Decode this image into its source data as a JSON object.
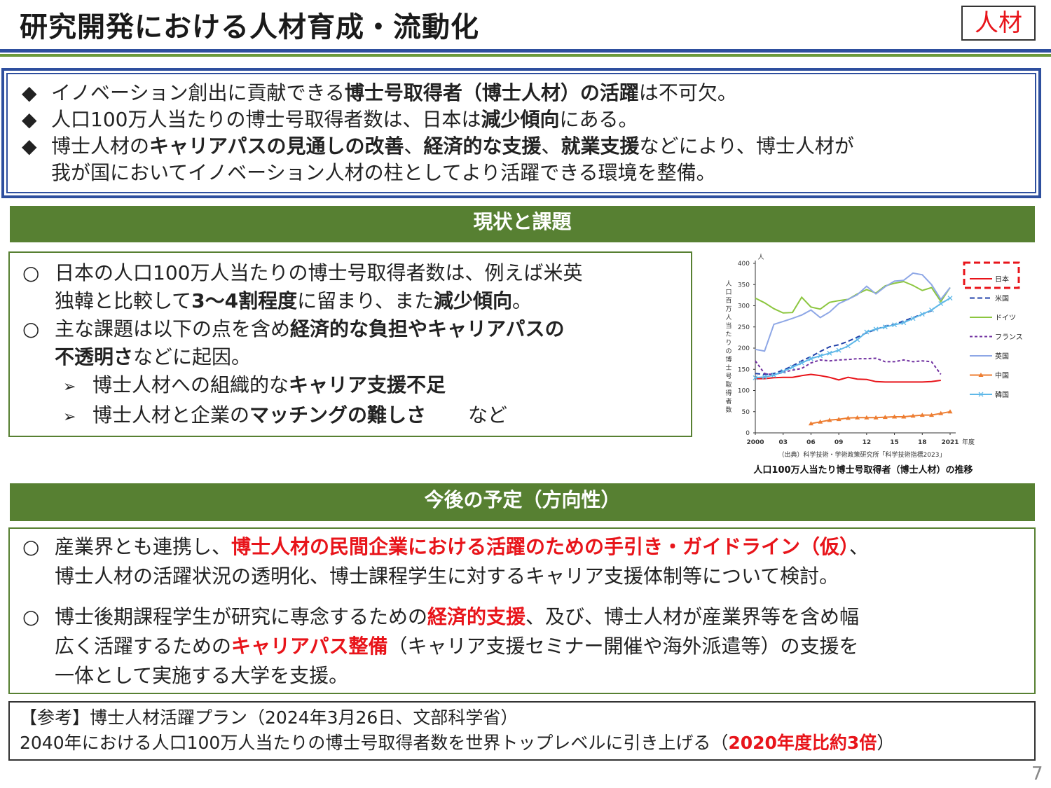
{
  "header": {
    "title": "研究開発における人材育成・流動化",
    "tag": "人材"
  },
  "summary": {
    "bullet": "◆",
    "line1": {
      "t1": "イノベーション創出に貢献できる",
      "b1": "博士号取得者（博士人材）の活躍",
      "t2": "は不可欠。"
    },
    "line2": {
      "t1": "人口100万人当たりの博士号取得者数は、日本は",
      "b1": "減少傾向",
      "t2": "にある。"
    },
    "line3": {
      "t1": "博士人材の",
      "b1": "キャリアパスの見通しの改善",
      "t2": "、",
      "b2": "経済的な支援",
      "t3": "、",
      "b3": "就業支援",
      "t4": "などにより、博士人材が"
    },
    "line4": "我が国においてイノベーション人材の柱としてより活躍できる環境を整備。"
  },
  "section1": {
    "title": "現状と課題"
  },
  "status": {
    "circle": "○",
    "arrow": "➢",
    "p1": {
      "t1": "日本の人口100万人当たりの博士号取得者数は、例えば米英",
      "t2": "独韓と比較して",
      "b1": "3～4割程度",
      "t3": "に留まり、また",
      "b2": "減少傾向",
      "t4": "。"
    },
    "p2": {
      "t1": "主な課題は以下の点を含め",
      "b1": "経済的な負担やキャリアパスの",
      "b2": "不透明さ",
      "t2": "などに起因。"
    },
    "sub1": {
      "t1": "博士人材への組織的な",
      "b1": "キャリア支援不足"
    },
    "sub2": {
      "t1": "博士人材と企業の",
      "b1": "マッチングの難しさ",
      "t2": "など"
    }
  },
  "chart": {
    "ylabel_unit": "人",
    "ylabel": "人口百万人当たりの博士号取得者数",
    "xlabel_unit": "年度",
    "source": "（出典）科学技術・学術政策研究所「科学技術指標2023」",
    "caption": "人口100万人当たり博士号取得者（博士人材）の推移",
    "highlight_color": "#e8141a"
  },
  "chart_data": {
    "type": "line",
    "ylim": [
      0,
      400
    ],
    "y_ticks": [
      0,
      50,
      100,
      150,
      200,
      250,
      300,
      350,
      400
    ],
    "xlim": [
      2000,
      2021
    ],
    "x_ticks": [
      {
        "v": 2000,
        "label": "2000"
      },
      {
        "v": 2003,
        "label": "03"
      },
      {
        "v": 2006,
        "label": "06"
      },
      {
        "v": 2009,
        "label": "09"
      },
      {
        "v": 2012,
        "label": "12"
      },
      {
        "v": 2015,
        "label": "15"
      },
      {
        "v": 2018,
        "label": "18"
      },
      {
        "v": 2021,
        "label": "2021"
      }
    ],
    "legend_position": "right",
    "series": [
      {
        "name": "日本",
        "color": "#e8141a",
        "dash": "",
        "marker": "none",
        "x": [
          2000,
          2001,
          2002,
          2003,
          2004,
          2005,
          2006,
          2007,
          2008,
          2009,
          2010,
          2011,
          2012,
          2013,
          2014,
          2015,
          2016,
          2017,
          2018,
          2019,
          2020
        ],
        "y": [
          128,
          128,
          130,
          131,
          131,
          135,
          138,
          135,
          131,
          125,
          131,
          127,
          126,
          121,
          120,
          120,
          120,
          120,
          120,
          121,
          124
        ]
      },
      {
        "name": "米国",
        "color": "#1f3fa8",
        "dash": "7,4",
        "marker": "none",
        "x": [
          2000,
          2001,
          2002,
          2003,
          2004,
          2005,
          2006,
          2007,
          2008,
          2009,
          2010,
          2011,
          2012,
          2013,
          2014,
          2015,
          2016,
          2017,
          2018,
          2019
        ],
        "y": [
          140,
          138,
          140,
          148,
          158,
          170,
          180,
          192,
          203,
          208,
          216,
          226,
          236,
          244,
          252,
          256,
          264,
          272,
          280,
          288
        ]
      },
      {
        "name": "ドイツ",
        "color": "#8cc63f",
        "dash": "",
        "marker": "none",
        "x": [
          2000,
          2001,
          2002,
          2003,
          2004,
          2005,
          2006,
          2007,
          2008,
          2009,
          2010,
          2011,
          2012,
          2013,
          2014,
          2015,
          2016,
          2017,
          2018,
          2019,
          2020,
          2021
        ],
        "y": [
          318,
          307,
          293,
          283,
          284,
          320,
          297,
          292,
          308,
          312,
          315,
          328,
          338,
          330,
          347,
          353,
          357,
          348,
          336,
          343,
          310,
          343
        ]
      },
      {
        "name": "フランス",
        "color": "#7030a0",
        "dash": "4,3",
        "marker": "none",
        "x": [
          2000,
          2001,
          2002,
          2003,
          2004,
          2005,
          2006,
          2007,
          2008,
          2009,
          2010,
          2011,
          2012,
          2013,
          2014,
          2015,
          2016,
          2017,
          2018,
          2019,
          2020
        ],
        "y": [
          170,
          140,
          137,
          143,
          148,
          152,
          165,
          172,
          170,
          172,
          173,
          175,
          175,
          176,
          168,
          168,
          172,
          168,
          170,
          168,
          138
        ]
      },
      {
        "name": "英国",
        "color": "#8ea7e6",
        "dash": "",
        "marker": "none",
        "x": [
          2000,
          2001,
          2002,
          2003,
          2004,
          2005,
          2006,
          2007,
          2008,
          2009,
          2010,
          2011,
          2012,
          2013,
          2014,
          2015,
          2016,
          2017,
          2018,
          2019,
          2020,
          2021
        ],
        "y": [
          197,
          193,
          256,
          263,
          270,
          278,
          290,
          272,
          285,
          305,
          315,
          326,
          346,
          328,
          345,
          358,
          360,
          377,
          373,
          350,
          315,
          343
        ]
      },
      {
        "name": "中国",
        "color": "#ed7d31",
        "dash": "",
        "marker": "triangle",
        "x": [
          2006,
          2007,
          2008,
          2009,
          2010,
          2011,
          2012,
          2013,
          2014,
          2015,
          2016,
          2017,
          2018,
          2019,
          2020,
          2021
        ],
        "y": [
          22,
          26,
          30,
          32,
          35,
          36,
          36,
          36,
          37,
          38,
          38,
          40,
          42,
          42,
          46,
          50
        ]
      },
      {
        "name": "韓国",
        "color": "#5fb8e8",
        "dash": "",
        "marker": "x",
        "x": [
          2000,
          2001,
          2002,
          2003,
          2004,
          2005,
          2006,
          2007,
          2008,
          2009,
          2010,
          2011,
          2012,
          2013,
          2014,
          2015,
          2016,
          2017,
          2018,
          2019,
          2020,
          2021
        ],
        "y": [
          130,
          132,
          136,
          145,
          155,
          165,
          175,
          182,
          188,
          195,
          205,
          220,
          238,
          245,
          250,
          255,
          260,
          270,
          280,
          290,
          305,
          318
        ]
      }
    ]
  },
  "section2": {
    "title": "今後の予定（方向性）"
  },
  "future": {
    "circle": "○",
    "p1": {
      "t1": "産業界とも連携し、",
      "r1": "博士人材の民間企業における活躍のための手引き・ガイドライン（仮）",
      "t2": "、",
      "t3": "博士人材の活躍状況の透明化、博士課程学生に対するキャリア支援体制等について検討。"
    },
    "p2": {
      "t1": "博士後期課程学生が研究に専念するための",
      "r1": "経済的支援",
      "t2": "、及び、博士人材が産業界等を含め幅",
      "t3": "広く活躍するための",
      "r2": "キャリアパス整備",
      "t4": "（キャリア支援セミナー開催や海外派遣等）の支援を",
      "t5": "一体として実施する大学を支援。"
    }
  },
  "reference": {
    "line1": "【参考】博士人材活躍プラン（2024年3月26日、文部科学省）",
    "line2_t1": "2040年における人口100万人当たりの博士号取得者数を世界トップレベルに引き上げる（",
    "line2_r1": "2020年度比約3倍",
    "line2_t2": "）"
  },
  "page": {
    "number": "7"
  }
}
